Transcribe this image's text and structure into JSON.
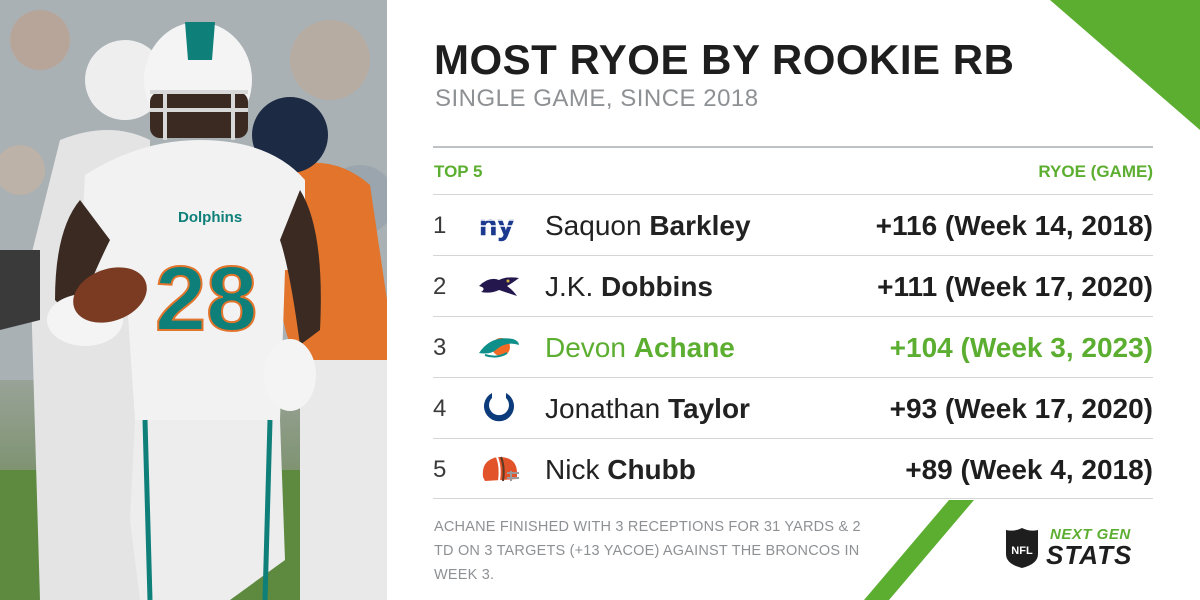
{
  "photo": {
    "jersey_team": "Dolphins",
    "jersey_number": "28"
  },
  "header": {
    "title": "MOST RYOE BY ROOKIE RB",
    "subtitle": "SINGLE GAME, SINCE 2018"
  },
  "table": {
    "left_header": "TOP 5",
    "right_header": "RYOE (GAME)",
    "rows": [
      {
        "rank": "1",
        "first": "Saquon",
        "last": "Barkley",
        "value": "+116 (Week 14, 2018)",
        "team_logo": "giants-logo-icon",
        "highlight": false
      },
      {
        "rank": "2",
        "first": "J.K.",
        "last": "Dobbins",
        "value": "+111 (Week 17, 2020)",
        "team_logo": "ravens-logo-icon",
        "highlight": false
      },
      {
        "rank": "3",
        "first": "Devon",
        "last": "Achane",
        "value": "+104 (Week 3, 2023)",
        "team_logo": "dolphins-logo-icon",
        "highlight": true
      },
      {
        "rank": "4",
        "first": "Jonathan",
        "last": "Taylor",
        "value": "+93 (Week 17, 2020)",
        "team_logo": "colts-logo-icon",
        "highlight": false
      },
      {
        "rank": "5",
        "first": "Nick",
        "last": "Chubb",
        "value": "+89 (Week 4, 2018)",
        "team_logo": "browns-logo-icon",
        "highlight": false
      }
    ]
  },
  "footnote": "ACHANE FINISHED WITH 3 RECEPTIONS FOR 31 YARDS & 2 TD ON 3 TARGETS (+13 YACOE) AGAINST THE BRONCOS IN WEEK 3.",
  "brand": {
    "league": "NFL",
    "line1": "NEXT GEN",
    "line2": "STATS"
  },
  "colors": {
    "accent_green": "#5cae31",
    "text_dark": "#1e1e1e",
    "text_gray": "#8e9194"
  }
}
